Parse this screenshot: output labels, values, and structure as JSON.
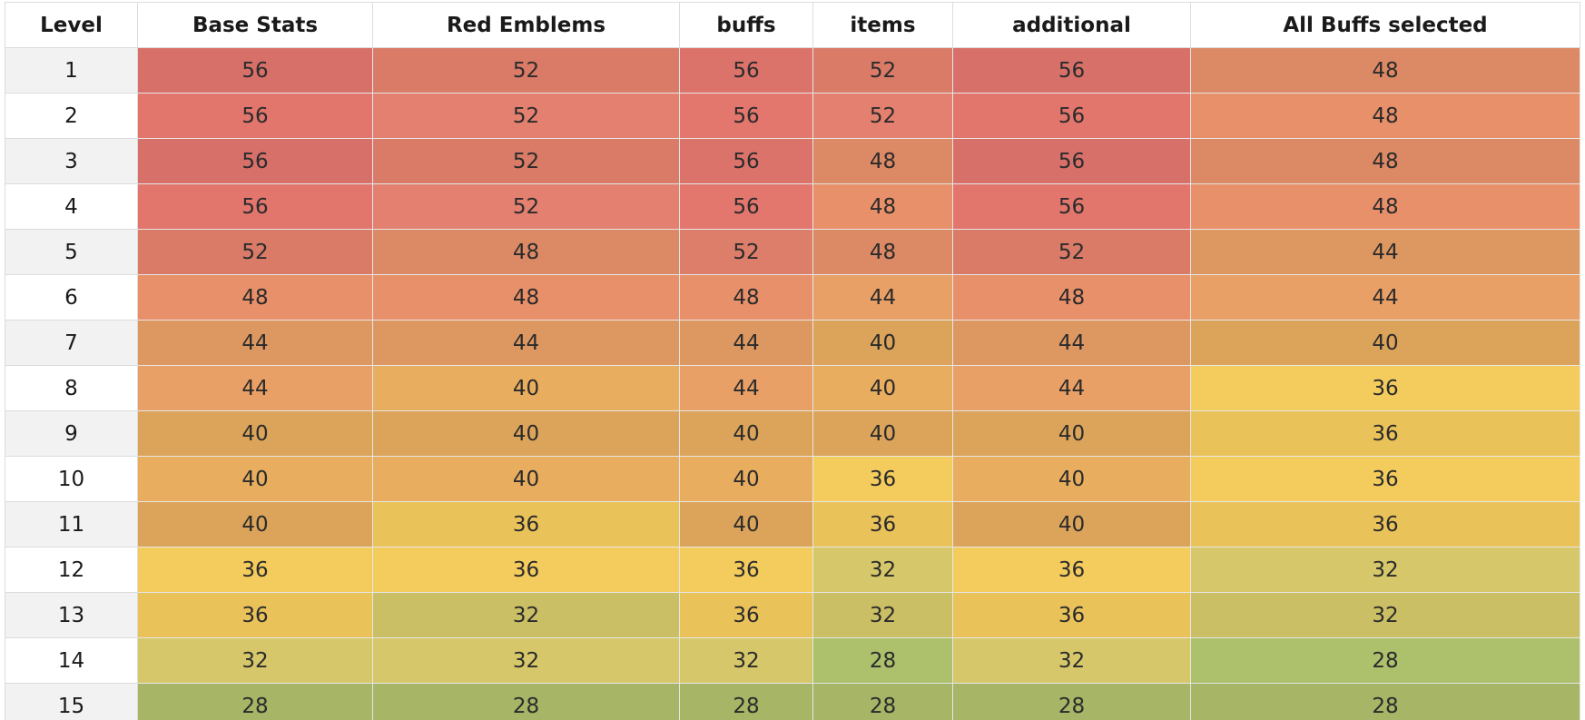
{
  "table": {
    "columns": [
      "Level",
      "Base Stats",
      "Red Emblems",
      "buffs",
      "items",
      "additional",
      "All Buffs selected"
    ],
    "rows": [
      {
        "level": "1",
        "values": [
          "56",
          "52",
          "56",
          "52",
          "56",
          "48"
        ],
        "colors": [
          "#d8706a",
          "#da7b68",
          "#dc736b",
          "#da7b68",
          "#d8706a",
          "#dc8965"
        ]
      },
      {
        "level": "2",
        "values": [
          "56",
          "52",
          "56",
          "52",
          "56",
          "48"
        ],
        "colors": [
          "#e2766d",
          "#e48070",
          "#e3766d",
          "#e48070",
          "#e2766d",
          "#e8906a"
        ]
      },
      {
        "level": "3",
        "values": [
          "56",
          "52",
          "56",
          "48",
          "56",
          "48"
        ],
        "colors": [
          "#d8706a",
          "#da7b68",
          "#dc736b",
          "#dc8965",
          "#d8706a",
          "#dc8965"
        ]
      },
      {
        "level": "4",
        "values": [
          "56",
          "52",
          "56",
          "48",
          "56",
          "48"
        ],
        "colors": [
          "#e2766d",
          "#e48070",
          "#e3766d",
          "#e8906a",
          "#e2766d",
          "#e8906a"
        ]
      },
      {
        "level": "5",
        "values": [
          "52",
          "48",
          "52",
          "48",
          "52",
          "44"
        ],
        "colors": [
          "#da7b68",
          "#dc8965",
          "#dc7e6a",
          "#dc8965",
          "#da7b68",
          "#dd9862"
        ]
      },
      {
        "level": "6",
        "values": [
          "48",
          "48",
          "48",
          "44",
          "48",
          "44"
        ],
        "colors": [
          "#e8906a",
          "#e8906a",
          "#e8906a",
          "#e9a066",
          "#e8906a",
          "#e9a066"
        ]
      },
      {
        "level": "7",
        "values": [
          "44",
          "44",
          "44",
          "40",
          "44",
          "40"
        ],
        "colors": [
          "#dd9862",
          "#dd9862",
          "#dd9862",
          "#dca45a",
          "#dd9862",
          "#dca45a"
        ]
      },
      {
        "level": "8",
        "values": [
          "44",
          "40",
          "44",
          "40",
          "44",
          "36"
        ],
        "colors": [
          "#e9a066",
          "#e8ad5e",
          "#e9a066",
          "#e8ad5e",
          "#e9a066",
          "#f4cc5e"
        ]
      },
      {
        "level": "9",
        "values": [
          "40",
          "40",
          "40",
          "40",
          "40",
          "36"
        ],
        "colors": [
          "#dca45a",
          "#dca45a",
          "#dca45a",
          "#dca45a",
          "#dca45a",
          "#eac25a"
        ]
      },
      {
        "level": "10",
        "values": [
          "40",
          "40",
          "40",
          "36",
          "40",
          "36"
        ],
        "colors": [
          "#e8ad5e",
          "#e8ad5e",
          "#e8ad5e",
          "#f4cc5e",
          "#e8ad5e",
          "#f4cc5e"
        ]
      },
      {
        "level": "11",
        "values": [
          "40",
          "36",
          "40",
          "36",
          "40",
          "36"
        ],
        "colors": [
          "#dca45a",
          "#eac25a",
          "#dca45a",
          "#eac25a",
          "#dca45a",
          "#eac25a"
        ]
      },
      {
        "level": "12",
        "values": [
          "36",
          "36",
          "36",
          "32",
          "36",
          "32"
        ],
        "colors": [
          "#f4cc5e",
          "#f4cc5e",
          "#f4cc5e",
          "#d6c86a",
          "#f4cc5e",
          "#d6c86a"
        ]
      },
      {
        "level": "13",
        "values": [
          "36",
          "32",
          "36",
          "32",
          "36",
          "32"
        ],
        "colors": [
          "#eac25a",
          "#cbbf66",
          "#eac25a",
          "#cbbf66",
          "#eac25a",
          "#cbbf66"
        ]
      },
      {
        "level": "14",
        "values": [
          "32",
          "32",
          "32",
          "28",
          "32",
          "28"
        ],
        "colors": [
          "#d6c86a",
          "#d6c86a",
          "#d6c86a",
          "#adc06c",
          "#d6c86a",
          "#adc06c"
        ]
      },
      {
        "level": "15",
        "values": [
          "28",
          "28",
          "28",
          "28",
          "28",
          "28"
        ],
        "colors": [
          "#a6b566",
          "#a6b566",
          "#a6b566",
          "#a6b566",
          "#a6b566",
          "#a6b566"
        ]
      }
    ]
  }
}
